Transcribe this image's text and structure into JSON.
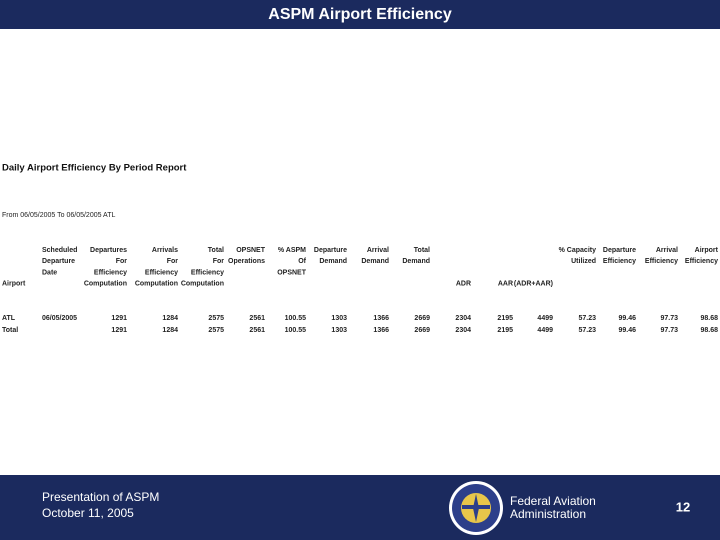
{
  "header": {
    "title": "ASPM Airport Efficiency"
  },
  "report": {
    "title": "Daily Airport Efficiency By Period Report",
    "filter": "From 06/05/2005 To 06/05/2005 ATL"
  },
  "table": {
    "columns": [
      [
        "Airport"
      ],
      [
        "Scheduled",
        "Departure",
        "Date"
      ],
      [
        "Departures",
        "For",
        "Efficiency",
        "Computation"
      ],
      [
        "Arrivals",
        "For",
        "Efficiency",
        "Computation"
      ],
      [
        "Total",
        "For",
        "Efficiency",
        "Computation"
      ],
      [
        "OPSNET",
        "Operations"
      ],
      [
        "% ASPM",
        "Of",
        "OPSNET"
      ],
      [
        "Departure",
        "Demand"
      ],
      [
        "Arrival",
        "Demand"
      ],
      [
        "Total",
        "Demand"
      ],
      [
        "ADR"
      ],
      [
        "AAR"
      ],
      [
        "(ADR+AAR)"
      ],
      [
        "% Capacity",
        "Utilized"
      ],
      [
        "Departure",
        "Efficiency"
      ],
      [
        "Arrival",
        "Efficiency"
      ],
      [
        "Airport",
        "Efficiency"
      ]
    ],
    "rows": [
      [
        "ATL",
        "06/05/2005",
        "1291",
        "1284",
        "2575",
        "2561",
        "100.55",
        "1303",
        "1366",
        "2669",
        "2304",
        "2195",
        "4499",
        "57.23",
        "99.46",
        "97.73",
        "98.68"
      ],
      [
        "Total",
        "",
        "1291",
        "1284",
        "2575",
        "2561",
        "100.55",
        "1303",
        "1366",
        "2669",
        "2304",
        "2195",
        "4499",
        "57.23",
        "99.46",
        "97.73",
        "98.68"
      ]
    ]
  },
  "footer": {
    "presentation": "Presentation of ASPM",
    "date": "October 11, 2005",
    "agency": [
      "Federal Aviation",
      "Administration"
    ],
    "page": "12"
  }
}
